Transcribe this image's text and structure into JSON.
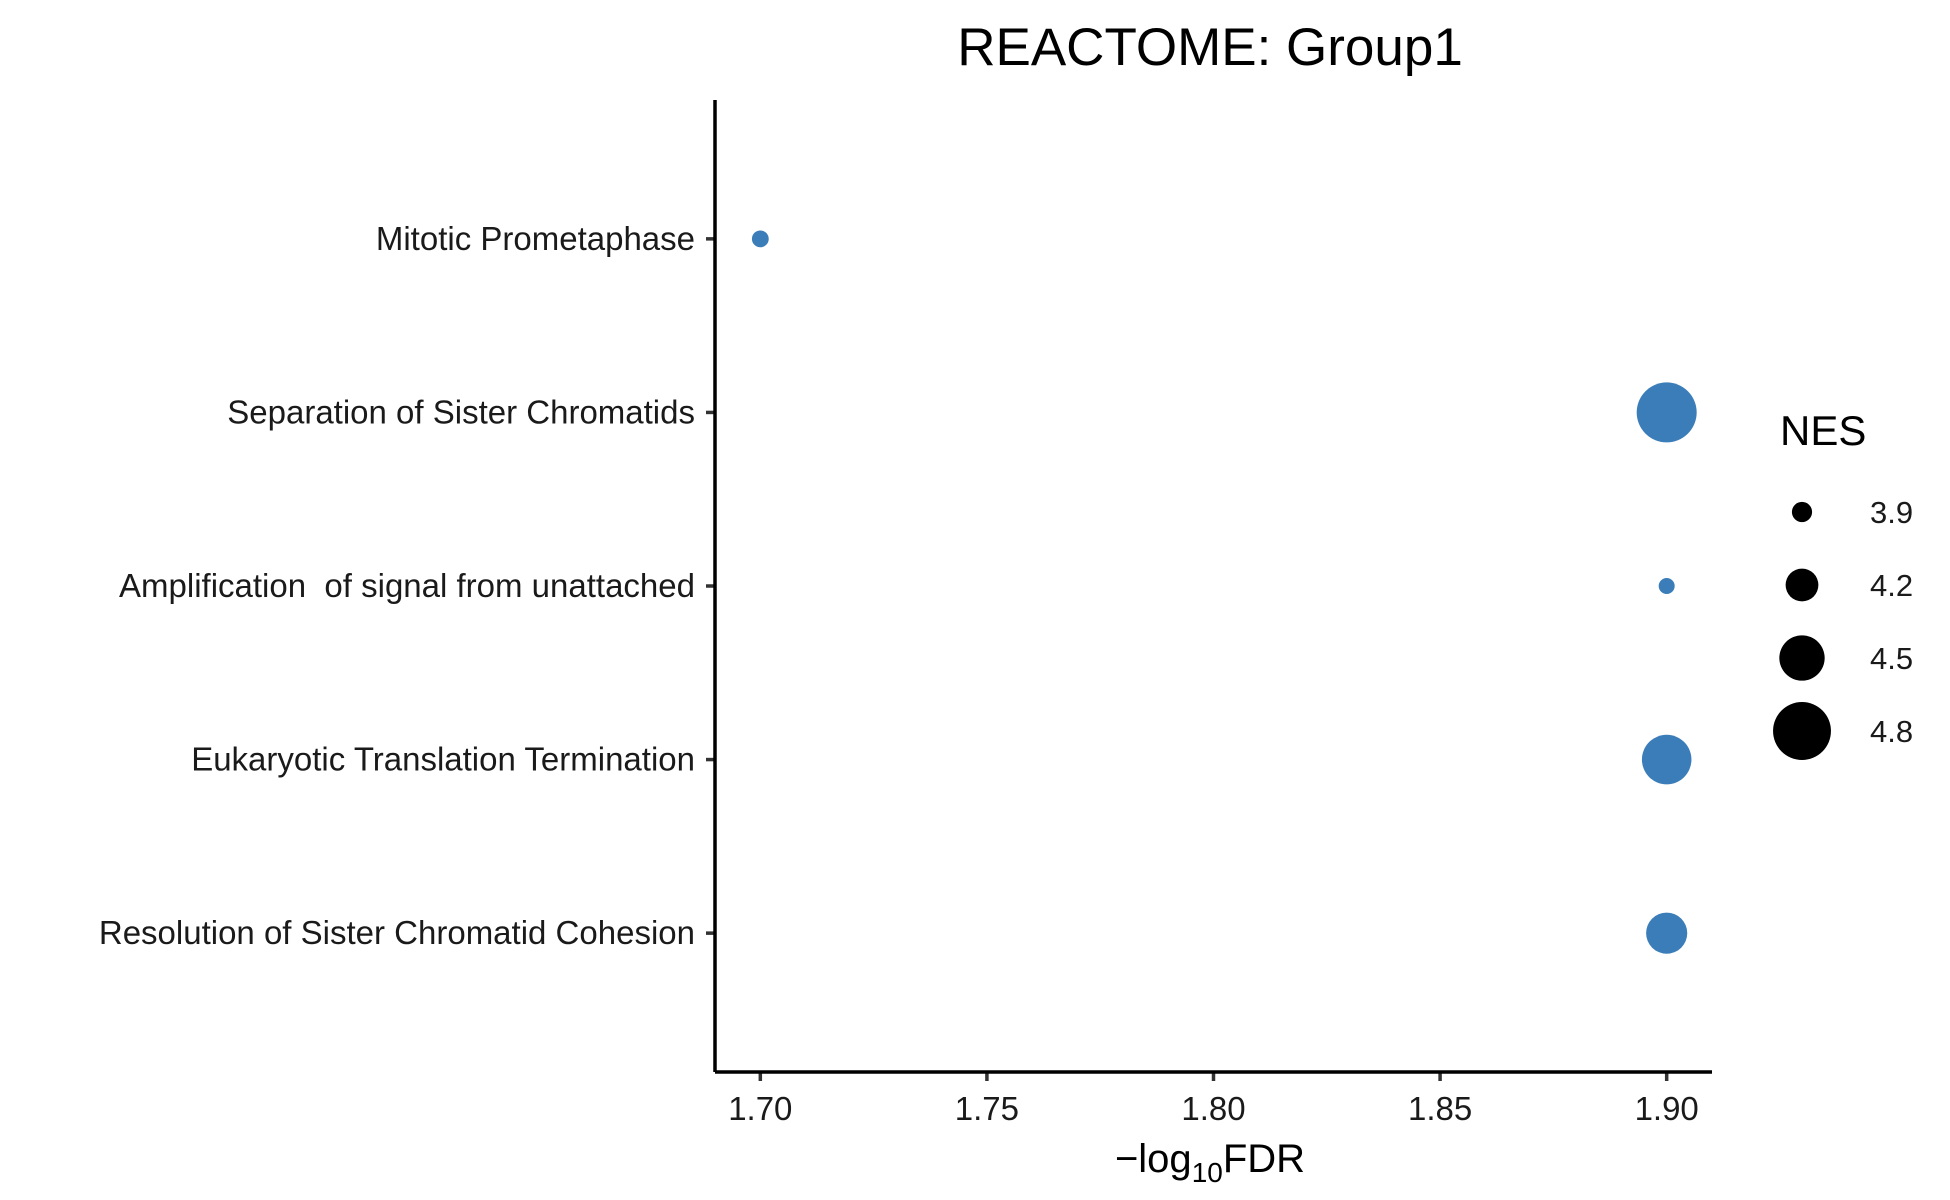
{
  "chart_data": {
    "type": "scatter",
    "title": "REACTOME: Group1",
    "xlabel": {
      "prefix": "−log",
      "sub": "10",
      "suffix": "FDR"
    },
    "ylabel": "",
    "xlim": [
      1.69,
      1.91
    ],
    "x_ticks": [
      "1.70",
      "1.75",
      "1.80",
      "1.85",
      "1.90"
    ],
    "x_tick_values": [
      1.7,
      1.75,
      1.8,
      1.85,
      1.9
    ],
    "categories": [
      "Mitotic Prometaphase",
      "Separation of Sister Chromatids",
      "Amplification  of signal from unattached",
      "Eukaryotic Translation Termination",
      "Resolution of Sister Chromatid Cohesion"
    ],
    "points": [
      {
        "category": "Mitotic Prometaphase",
        "x": 1.7,
        "nes": 3.82
      },
      {
        "category": "Separation of Sister Chromatids",
        "x": 1.9,
        "nes": 4.85
      },
      {
        "category": "Amplification  of signal from unattached",
        "x": 1.9,
        "nes": 3.8
      },
      {
        "category": "Eukaryotic Translation Termination",
        "x": 1.9,
        "nes": 4.6
      },
      {
        "category": "Resolution of Sister Chromatid Cohesion",
        "x": 1.9,
        "nes": 4.4
      }
    ],
    "point_color": "#3A7DB8",
    "size_legend": {
      "title": "NES",
      "values": [
        3.9,
        4.2,
        4.5,
        4.8
      ],
      "labels": [
        "3.9",
        "4.2",
        "4.5",
        "4.8"
      ],
      "color": "#000000"
    },
    "grid": false,
    "legend_position": "right"
  }
}
